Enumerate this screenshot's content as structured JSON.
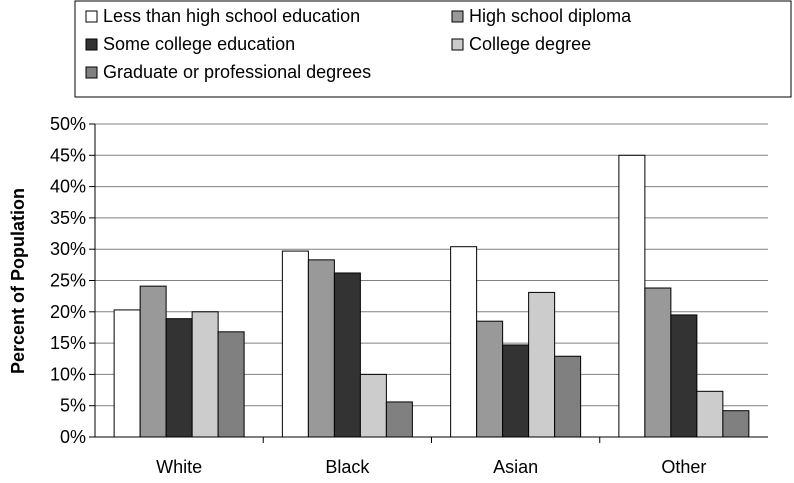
{
  "chart_data": {
    "type": "bar",
    "title": "",
    "xlabel": "",
    "ylabel": "Percent of Population",
    "ylim": [
      0,
      50
    ],
    "yticks": [
      "0%",
      "5%",
      "10%",
      "15%",
      "20%",
      "25%",
      "30%",
      "35%",
      "40%",
      "45%",
      "50%"
    ],
    "grid": true,
    "legend_position": "top",
    "categories": [
      "White",
      "Black",
      "Asian",
      "Other"
    ],
    "series": [
      {
        "name": "Less than high school education",
        "color": "#ffffff",
        "values": [
          20.3,
          29.7,
          30.4,
          45.0
        ]
      },
      {
        "name": "High school diploma",
        "color": "#999999",
        "values": [
          24.1,
          28.3,
          18.5,
          23.8
        ]
      },
      {
        "name": "Some college education",
        "color": "#333333",
        "values": [
          18.9,
          26.2,
          14.7,
          19.5
        ]
      },
      {
        "name": "College degree",
        "color": "#cccccc",
        "values": [
          20.0,
          10.0,
          23.1,
          7.3
        ]
      },
      {
        "name": "Graduate or professional degrees",
        "color": "#808080",
        "values": [
          16.8,
          5.6,
          12.9,
          4.2
        ]
      }
    ]
  }
}
